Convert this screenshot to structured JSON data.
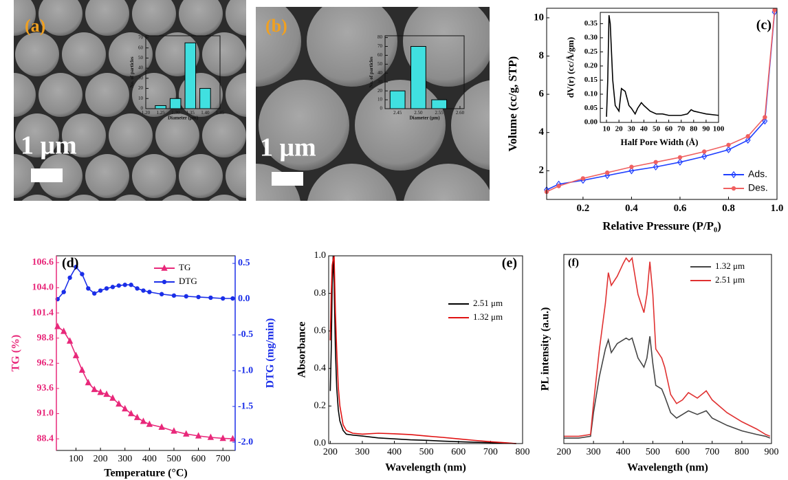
{
  "chart_data": [
    {
      "type": "bar",
      "panel_label": "(a)",
      "scale_bar_label": "1 μm",
      "x": [
        1.25,
        1.3,
        1.35,
        1.4
      ],
      "values": [
        3,
        10,
        65,
        20
      ],
      "color": "#40e0e0",
      "xlim": [
        1.2,
        1.45
      ],
      "xticks": [
        {
          "value": 1.2,
          "label": "1.20"
        },
        1.25,
        {
          "value": 1.3,
          "label": "1.30"
        },
        1.35,
        {
          "value": 1.4,
          "label": "1.40"
        },
        1.45
      ],
      "ylim": [
        0,
        72
      ],
      "yticks": [
        0,
        10,
        20,
        30,
        40,
        50,
        60,
        70
      ],
      "xlabel": "Diameter (μm)",
      "ylabel": "No. of particles"
    },
    {
      "type": "bar",
      "panel_label": "(b)",
      "scale_bar_label": "1 μm",
      "x": [
        2.45,
        2.5,
        2.55
      ],
      "values": [
        20,
        70,
        10
      ],
      "color": "#40e0e0",
      "xlim": [
        2.42,
        2.61
      ],
      "xticks": [
        2.45,
        {
          "value": 2.5,
          "label": "2.50"
        },
        2.55,
        {
          "value": 2.6,
          "label": "2.60"
        }
      ],
      "ylim": [
        0,
        82
      ],
      "yticks": [
        0,
        10,
        20,
        30,
        40,
        50,
        60,
        70,
        80
      ],
      "xlabel": "Diameter (μm)",
      "ylabel": "No. of particles"
    },
    {
      "type": "line",
      "panel_label": "(c)",
      "x": [
        0.05,
        0.1,
        0.2,
        0.3,
        0.4,
        0.5,
        0.6,
        0.7,
        0.8,
        0.88,
        0.95,
        0.99
      ],
      "series": [
        {
          "name": "Ads.",
          "color": "#1f3fff",
          "marker": "diamond",
          "values": [
            1.0,
            1.3,
            1.5,
            1.75,
            2.0,
            2.2,
            2.45,
            2.75,
            3.1,
            3.6,
            4.6,
            10.3
          ]
        },
        {
          "name": "Des.",
          "color": "#f06060",
          "marker": "circle",
          "values": [
            0.9,
            1.2,
            1.6,
            1.9,
            2.2,
            2.45,
            2.7,
            3.0,
            3.35,
            3.8,
            4.8,
            10.4
          ]
        }
      ],
      "xlim": [
        0.05,
        1.0
      ],
      "xticks": [
        0.2,
        0.4,
        0.6,
        0.8,
        {
          "value": 1.0,
          "label": "1.0"
        }
      ],
      "ylim": [
        0.5,
        10.5
      ],
      "yticks": [
        2,
        4,
        6,
        8,
        10
      ],
      "xlabel": "Relative Pressure (P/P₀)",
      "ylabel": "Volume  (cc/g, STP)",
      "legend": "lower right"
    },
    {
      "type": "line",
      "x": [
        10,
        11,
        12,
        13,
        14,
        15,
        17,
        20,
        22,
        25,
        28,
        30,
        33,
        35,
        38,
        40,
        45,
        50,
        55,
        60,
        70,
        75,
        78,
        80,
        85,
        90,
        100
      ],
      "series": [
        {
          "color": "#000000",
          "values": [
            0.02,
            0.15,
            0.38,
            0.35,
            0.25,
            0.15,
            0.06,
            0.04,
            0.12,
            0.11,
            0.06,
            0.05,
            0.03,
            0.05,
            0.07,
            0.06,
            0.04,
            0.03,
            0.03,
            0.025,
            0.025,
            0.03,
            0.045,
            0.04,
            0.035,
            0.03,
            0.025
          ]
        }
      ],
      "xlim": [
        5,
        100
      ],
      "xticks": [
        10,
        20,
        30,
        40,
        50,
        60,
        70,
        80,
        90,
        100
      ],
      "ylim": [
        0,
        0.39
      ],
      "yticks": [
        {
          "value": 0,
          "label": "0.00"
        },
        0.05,
        {
          "value": 0.1,
          "label": "0.10"
        },
        0.15,
        {
          "value": 0.2,
          "label": "0.20"
        },
        0.25,
        {
          "value": 0.3,
          "label": "0.30"
        },
        0.35
      ],
      "xlabel": "Half Pore Width (Å)",
      "ylabel": "dV(r) (cc/Å/gm)"
    },
    {
      "type": "line",
      "panel_label": "(d)",
      "x": [
        25,
        50,
        75,
        100,
        125,
        150,
        175,
        200,
        225,
        250,
        275,
        300,
        325,
        350,
        375,
        400,
        450,
        500,
        550,
        600,
        650,
        700,
        740
      ],
      "series": [
        {
          "name": "TG",
          "color": "#e8287a",
          "marker": "triangle",
          "values": [
            100.0,
            99.5,
            98.5,
            97,
            95.5,
            94.2,
            93.5,
            93.2,
            93.0,
            92.6,
            92.0,
            91.5,
            91,
            90.6,
            90.2,
            89.9,
            89.6,
            89.2,
            88.9,
            88.7,
            88.55,
            88.45,
            88.4
          ]
        },
        {
          "name": "DTG",
          "color": "#1a2ee8",
          "marker": "circle",
          "axis": "y2",
          "values": [
            0.0,
            0.1,
            0.3,
            0.45,
            0.35,
            0.15,
            0.08,
            0.12,
            0.15,
            0.17,
            0.19,
            0.2,
            0.2,
            0.15,
            0.12,
            0.1,
            0.07,
            0.05,
            0.04,
            0.03,
            0.02,
            0.01,
            0.01
          ]
        }
      ],
      "xlim": [
        20,
        750
      ],
      "xticks": [
        100,
        200,
        300,
        400,
        500,
        600,
        700
      ],
      "ylim": [
        87.2,
        107.3
      ],
      "yticks": [
        88.4,
        {
          "value": 91,
          "label": "91.0"
        },
        93.6,
        96.2,
        98.8,
        101.4,
        {
          "value": 104,
          "label": "104.0"
        },
        106.6
      ],
      "y2lim": [
        -2.115,
        0.606
      ],
      "y2ticks": [
        {
          "value": -2,
          "label": "-2.0"
        },
        -1.5,
        {
          "value": -1,
          "label": "-1.0"
        },
        -0.5,
        {
          "value": 0,
          "label": "0.0"
        },
        0.5
      ],
      "xlabel": "Temperature (°C)",
      "ylabel": "TG (%)",
      "y2label": "DTG (mg/min)",
      "legend": "upper right"
    },
    {
      "type": "line",
      "panel_label": "(e)",
      "x": [
        200,
        203,
        206,
        209,
        212,
        216,
        220,
        225,
        230,
        240,
        250,
        270,
        300,
        350,
        400,
        450,
        500,
        550,
        600,
        650,
        700,
        750,
        780
      ],
      "series": [
        {
          "name": "2.51 μm",
          "color": "#000000",
          "values": [
            0.28,
            0.5,
            0.85,
            1.0,
            0.85,
            0.5,
            0.3,
            0.18,
            0.12,
            0.07,
            0.05,
            0.045,
            0.04,
            0.03,
            0.025,
            0.02,
            0.017,
            0.013,
            0.01,
            0.007,
            0.005,
            0.002,
            0
          ]
        },
        {
          "name": "1.32 μm",
          "color": "#e01010",
          "values": [
            0.55,
            0.8,
            0.95,
            0.98,
            1.0,
            0.7,
            0.5,
            0.3,
            0.2,
            0.1,
            0.07,
            0.055,
            0.05,
            0.055,
            0.052,
            0.048,
            0.04,
            0.033,
            0.025,
            0.017,
            0.01,
            0.004,
            0
          ]
        }
      ],
      "xlim": [
        195,
        800
      ],
      "xticks": [
        200,
        300,
        400,
        500,
        600,
        700,
        800
      ],
      "ylim": [
        0,
        1.0
      ],
      "yticks": [
        {
          "value": 0,
          "label": "0.0"
        },
        0.2,
        0.4,
        0.6,
        0.8,
        {
          "value": 1,
          "label": "1.0"
        }
      ],
      "xlabel": "Wavelength (nm)",
      "ylabel": "Absorbance",
      "legend": "center right"
    },
    {
      "type": "line",
      "panel_label": "(f)",
      "x": [
        200,
        250,
        290,
        300,
        320,
        340,
        350,
        360,
        380,
        400,
        410,
        420,
        430,
        450,
        470,
        480,
        490,
        500,
        510,
        530,
        540,
        560,
        580,
        600,
        620,
        650,
        680,
        700,
        750,
        800,
        850,
        880,
        895
      ],
      "series": [
        {
          "name": "1.32 μm",
          "color": "#444444",
          "values": [
            0.01,
            0.01,
            0.02,
            0.15,
            0.35,
            0.5,
            0.55,
            0.48,
            0.53,
            0.55,
            0.56,
            0.55,
            0.56,
            0.45,
            0.4,
            0.45,
            0.57,
            0.42,
            0.3,
            0.28,
            0.24,
            0.15,
            0.12,
            0.14,
            0.16,
            0.14,
            0.16,
            0.12,
            0.08,
            0.05,
            0.03,
            0.02,
            0.01
          ]
        },
        {
          "name": "2.51 μm",
          "color": "#e03030",
          "values": [
            0.02,
            0.02,
            0.03,
            0.2,
            0.5,
            0.75,
            0.92,
            0.85,
            0.9,
            0.97,
            1.0,
            0.98,
            1.0,
            0.8,
            0.7,
            0.8,
            0.98,
            0.8,
            0.5,
            0.45,
            0.4,
            0.25,
            0.2,
            0.22,
            0.26,
            0.23,
            0.27,
            0.22,
            0.15,
            0.1,
            0.06,
            0.03,
            0.02
          ]
        }
      ],
      "xlim": [
        200,
        900
      ],
      "xticks": [
        200,
        300,
        400,
        500,
        600,
        700,
        800,
        900
      ],
      "ylim": [
        -0.02,
        1.02
      ],
      "xlabel": "Wavelength (nm)",
      "ylabel": "PL intensity (a.u.)",
      "legend": "upper right"
    }
  ]
}
